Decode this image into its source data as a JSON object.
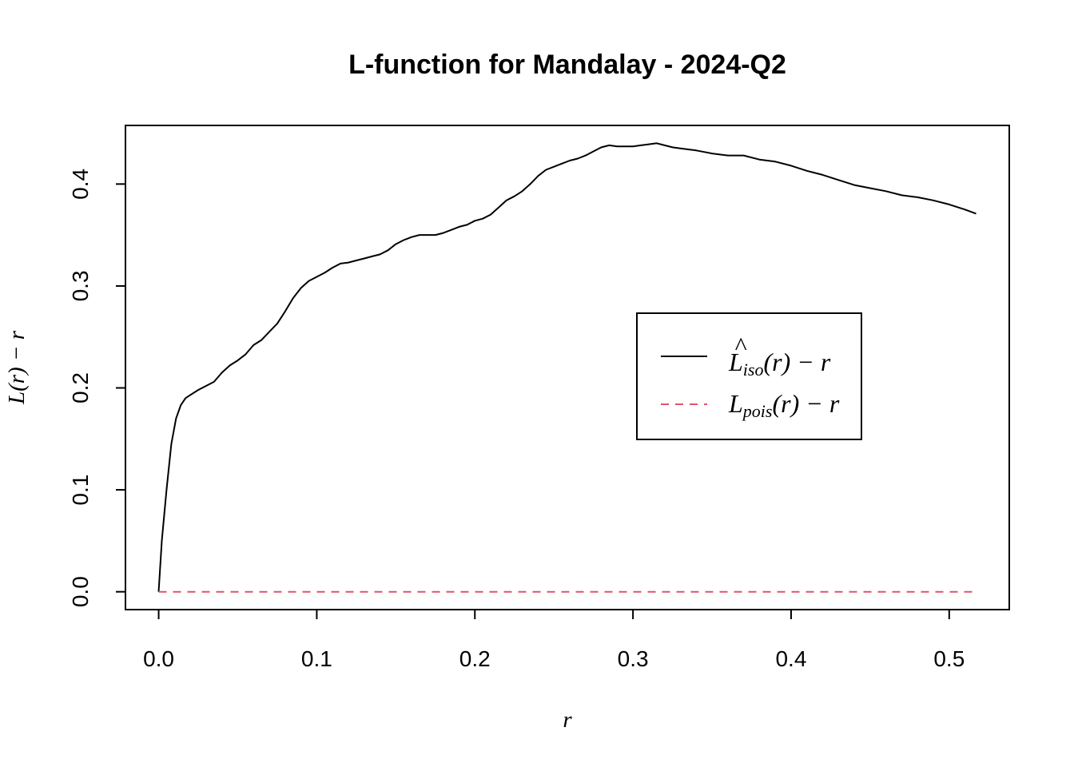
{
  "chart_data": {
    "type": "line",
    "title": "L-function for Mandalay - 2024-Q2",
    "xlabel": "r",
    "ylabel": "L(r) − r",
    "xlim": [
      -0.021,
      0.538
    ],
    "ylim": [
      -0.0175,
      0.4575
    ],
    "xticks": [
      {
        "value": 0.0,
        "label": "0.0"
      },
      {
        "value": 0.1,
        "label": "0.1"
      },
      {
        "value": 0.2,
        "label": "0.2"
      },
      {
        "value": 0.3,
        "label": "0.3"
      },
      {
        "value": 0.4,
        "label": "0.4"
      },
      {
        "value": 0.5,
        "label": "0.5"
      }
    ],
    "yticks": [
      {
        "value": 0.0,
        "label": "0.0"
      },
      {
        "value": 0.1,
        "label": "0.1"
      },
      {
        "value": 0.2,
        "label": "0.2"
      },
      {
        "value": 0.3,
        "label": "0.3"
      },
      {
        "value": 0.4,
        "label": "0.4"
      }
    ],
    "grid": false,
    "legend_position": "right",
    "legend": [
      {
        "series": "iso",
        "main": "L",
        "hat": "^",
        "sub": "iso",
        "tail": "(r) − r"
      },
      {
        "series": "pois",
        "main": "L",
        "hat": "",
        "sub": "pois",
        "tail": "(r) − r"
      }
    ],
    "series": [
      {
        "id": "iso",
        "color": "#000000",
        "dash": "solid",
        "x": [
          0,
          0.002,
          0.005,
          0.008,
          0.011,
          0.014,
          0.017,
          0.02,
          0.025,
          0.03,
          0.035,
          0.04,
          0.045,
          0.05,
          0.055,
          0.06,
          0.065,
          0.07,
          0.075,
          0.08,
          0.085,
          0.09,
          0.095,
          0.1,
          0.105,
          0.11,
          0.115,
          0.12,
          0.125,
          0.13,
          0.135,
          0.14,
          0.145,
          0.15,
          0.155,
          0.16,
          0.165,
          0.17,
          0.175,
          0.18,
          0.185,
          0.19,
          0.195,
          0.2,
          0.205,
          0.21,
          0.215,
          0.22,
          0.225,
          0.23,
          0.235,
          0.24,
          0.245,
          0.25,
          0.255,
          0.26,
          0.265,
          0.27,
          0.275,
          0.28,
          0.285,
          0.29,
          0.295,
          0.3,
          0.305,
          0.31,
          0.315,
          0.32,
          0.325,
          0.33,
          0.34,
          0.35,
          0.36,
          0.37,
          0.38,
          0.39,
          0.4,
          0.41,
          0.42,
          0.43,
          0.44,
          0.45,
          0.46,
          0.47,
          0.48,
          0.49,
          0.5,
          0.51,
          0.517
        ],
        "y": [
          0,
          0.05,
          0.1,
          0.145,
          0.17,
          0.183,
          0.19,
          0.193,
          0.198,
          0.202,
          0.206,
          0.215,
          0.222,
          0.227,
          0.233,
          0.242,
          0.247,
          0.255,
          0.263,
          0.275,
          0.288,
          0.298,
          0.305,
          0.309,
          0.313,
          0.318,
          0.322,
          0.323,
          0.325,
          0.327,
          0.329,
          0.331,
          0.335,
          0.341,
          0.345,
          0.348,
          0.35,
          0.35,
          0.35,
          0.352,
          0.355,
          0.358,
          0.36,
          0.364,
          0.366,
          0.37,
          0.377,
          0.384,
          0.388,
          0.393,
          0.4,
          0.408,
          0.414,
          0.417,
          0.42,
          0.423,
          0.425,
          0.428,
          0.432,
          0.436,
          0.438,
          0.437,
          0.437,
          0.437,
          0.438,
          0.439,
          0.44,
          0.438,
          0.436,
          0.435,
          0.433,
          0.43,
          0.428,
          0.428,
          0.424,
          0.422,
          0.418,
          0.413,
          0.409,
          0.404,
          0.399,
          0.396,
          0.393,
          0.389,
          0.387,
          0.384,
          0.38,
          0.375,
          0.371
        ]
      },
      {
        "id": "pois",
        "color": "#DF536B",
        "dash": "dashed",
        "x": [
          0,
          0.517
        ],
        "y": [
          0,
          0
        ]
      }
    ]
  }
}
